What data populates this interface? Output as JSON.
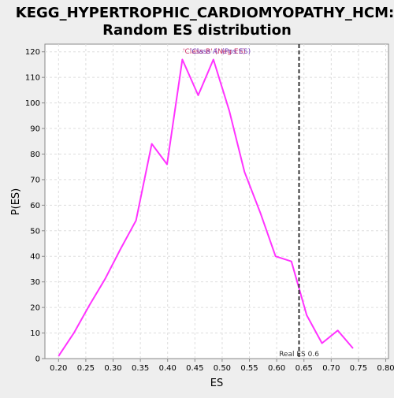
{
  "chart_data": {
    "type": "line",
    "title_lines": [
      "KEGG_HYPERTROPHIC_CARDIOMYOPATHY_HCM:",
      "Random ES distribution"
    ],
    "xlabel": "ES",
    "ylabel": "P(ES)",
    "xlim": [
      0.175,
      0.805
    ],
    "ylim": [
      0,
      123
    ],
    "x_ticks": [
      0.2,
      0.25,
      0.3,
      0.35,
      0.4,
      0.45,
      0.5,
      0.55,
      0.6,
      0.65,
      0.7,
      0.75,
      0.8
    ],
    "x_tick_labels": [
      "0.20",
      "0.25",
      "0.30",
      "0.35",
      "0.40",
      "0.45",
      "0.50",
      "0.55",
      "0.60",
      "0.65",
      "0.70",
      "0.75",
      "0.80"
    ],
    "y_ticks": [
      0,
      10,
      20,
      30,
      40,
      50,
      60,
      70,
      80,
      90,
      100,
      110,
      120
    ],
    "y_tick_labels": [
      "0",
      "10",
      "20",
      "30",
      "40",
      "50",
      "60",
      "70",
      "80",
      "90",
      "100",
      "110",
      "120"
    ],
    "grid": true,
    "series": [
      {
        "color": "#ff33ff",
        "points": [
          [
            0.2,
            1
          ],
          [
            0.228,
            10
          ],
          [
            0.257,
            21
          ],
          [
            0.285,
            31
          ],
          [
            0.314,
            43
          ],
          [
            0.342,
            54
          ],
          [
            0.371,
            84
          ],
          [
            0.399,
            76
          ],
          [
            0.427,
            117
          ],
          [
            0.456,
            103
          ],
          [
            0.484,
            117
          ],
          [
            0.513,
            97
          ],
          [
            0.541,
            73
          ],
          [
            0.57,
            57
          ],
          [
            0.598,
            40
          ],
          [
            0.627,
            38
          ],
          [
            0.655,
            17
          ],
          [
            0.683,
            6
          ],
          [
            0.712,
            11
          ],
          [
            0.74,
            4
          ]
        ]
      }
    ],
    "real_es": {
      "value": 0.641,
      "label": "Real ES 0.6",
      "color": "#333333"
    },
    "legend_overlap": {
      "text_a": "'Class B' (Neg ES)",
      "color_a": "#cc3366",
      "text_b": "'Class A' (Pos ES)",
      "color_b": "#7744bb"
    }
  }
}
